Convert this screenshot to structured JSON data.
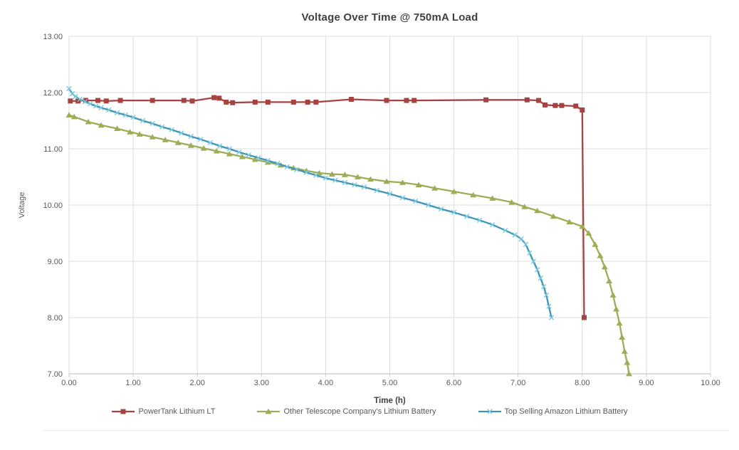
{
  "chart_data": {
    "type": "line",
    "title": "Voltage Over Time @ 750mA Load",
    "xlabel": "Time (h)",
    "ylabel": "Voltage",
    "xlim": [
      0,
      10
    ],
    "ylim": [
      7,
      13
    ],
    "grid": true,
    "legend_position": "bottom",
    "grid_color": "#dcdcdc",
    "axis_color": "#c6c6c6",
    "tick_label_color": "#595959",
    "x_tick_values": [
      0,
      1,
      2,
      3,
      4,
      5,
      6,
      7,
      8,
      9,
      10
    ],
    "x_tick_labels": [
      "0.00",
      "1.00",
      "2.00",
      "3.00",
      "4.00",
      "5.00",
      "6.00",
      "7.00",
      "8.00",
      "9.00",
      "10.00"
    ],
    "y_tick_values": [
      13,
      12,
      11,
      10,
      9,
      8,
      7
    ],
    "y_tick_labels": [
      "13.00",
      "12.00",
      "11.00",
      "10.00",
      "9.00",
      "8.00",
      "7.00"
    ],
    "series": [
      {
        "name": "PowerTank Lithium LT",
        "color": "#a6423f",
        "marker": "square",
        "marker_color": "#a6423f",
        "x": [
          0.02,
          0.14,
          0.26,
          0.45,
          0.58,
          0.8,
          1.3,
          1.79,
          1.92,
          2.26,
          2.34,
          2.45,
          2.55,
          2.9,
          3.1,
          3.5,
          3.72,
          3.85,
          4.4,
          4.95,
          5.26,
          5.38,
          6.5,
          7.14,
          7.32,
          7.42,
          7.58,
          7.68,
          7.9,
          8.0,
          8.03
        ],
        "y": [
          11.85,
          11.85,
          11.86,
          11.86,
          11.85,
          11.86,
          11.86,
          11.86,
          11.85,
          11.91,
          11.9,
          11.83,
          11.82,
          11.83,
          11.83,
          11.83,
          11.83,
          11.83,
          11.88,
          11.86,
          11.86,
          11.86,
          11.87,
          11.87,
          11.86,
          11.78,
          11.77,
          11.77,
          11.76,
          11.69,
          8.0
        ]
      },
      {
        "name": "Other Telescope Company's Lithium Battery",
        "color": "#9cad56",
        "marker": "triangle",
        "marker_color": "#9cad56",
        "x": [
          0.0,
          0.08,
          0.3,
          0.5,
          0.75,
          0.95,
          1.1,
          1.3,
          1.5,
          1.7,
          1.9,
          2.1,
          2.3,
          2.5,
          2.7,
          2.9,
          3.1,
          3.3,
          3.5,
          3.7,
          3.9,
          4.1,
          4.3,
          4.5,
          4.7,
          4.95,
          5.2,
          5.45,
          5.7,
          6.0,
          6.3,
          6.6,
          6.9,
          7.1,
          7.3,
          7.55,
          7.8,
          8.0,
          8.1,
          8.2,
          8.28,
          8.35,
          8.42,
          8.48,
          8.53,
          8.58,
          8.62,
          8.66,
          8.7,
          8.73
        ],
        "y": [
          11.6,
          11.57,
          11.48,
          11.42,
          11.36,
          11.3,
          11.26,
          11.21,
          11.16,
          11.11,
          11.06,
          11.01,
          10.96,
          10.91,
          10.86,
          10.81,
          10.76,
          10.71,
          10.66,
          10.61,
          10.57,
          10.55,
          10.54,
          10.5,
          10.46,
          10.42,
          10.4,
          10.36,
          10.3,
          10.24,
          10.18,
          10.12,
          10.05,
          9.97,
          9.9,
          9.8,
          9.7,
          9.62,
          9.5,
          9.3,
          9.1,
          8.9,
          8.65,
          8.4,
          8.15,
          7.9,
          7.65,
          7.4,
          7.2,
          7.0
        ]
      },
      {
        "name": "Top Selling Amazon Lithium Battery",
        "color": "#4193b3",
        "marker": "x",
        "marker_color": "#79c9df",
        "x": [
          0.0,
          0.05,
          0.1,
          0.17,
          0.25,
          0.33,
          0.42,
          0.5,
          0.62,
          0.75,
          0.88,
          1.0,
          1.15,
          1.3,
          1.45,
          1.6,
          1.75,
          1.9,
          2.05,
          2.2,
          2.35,
          2.5,
          2.65,
          2.8,
          2.95,
          3.1,
          3.25,
          3.4,
          3.55,
          3.7,
          3.85,
          4.0,
          4.15,
          4.3,
          4.45,
          4.6,
          4.8,
          5.0,
          5.2,
          5.4,
          5.6,
          5.8,
          6.0,
          6.2,
          6.4,
          6.6,
          6.8,
          6.95,
          7.05,
          7.12,
          7.18,
          7.24,
          7.3,
          7.35,
          7.4,
          7.44,
          7.48,
          7.52
        ],
        "y": [
          12.07,
          11.98,
          11.93,
          11.88,
          11.84,
          11.8,
          11.76,
          11.73,
          11.69,
          11.64,
          11.6,
          11.56,
          11.5,
          11.45,
          11.39,
          11.34,
          11.28,
          11.22,
          11.17,
          11.11,
          11.05,
          11.0,
          10.94,
          10.89,
          10.84,
          10.79,
          10.74,
          10.68,
          10.63,
          10.58,
          10.53,
          10.48,
          10.44,
          10.4,
          10.36,
          10.32,
          10.26,
          10.2,
          10.13,
          10.07,
          10.0,
          9.93,
          9.87,
          9.8,
          9.73,
          9.65,
          9.55,
          9.47,
          9.4,
          9.3,
          9.15,
          9.0,
          8.85,
          8.7,
          8.55,
          8.4,
          8.2,
          8.0
        ]
      }
    ]
  }
}
